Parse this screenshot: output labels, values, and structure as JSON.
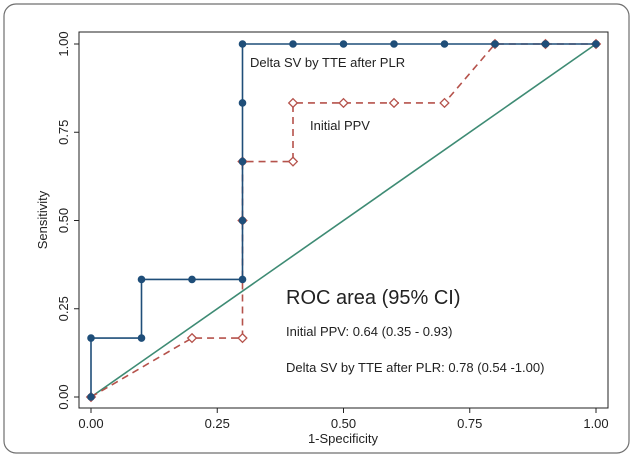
{
  "chart_data": {
    "type": "line",
    "title": "",
    "xlabel": "1-Specificity",
    "ylabel": "Sensitivity",
    "xlim": [
      0,
      1
    ],
    "ylim": [
      0,
      1
    ],
    "x_ticks": [
      "0.00",
      "0.25",
      "0.50",
      "0.75",
      "1.00"
    ],
    "y_ticks": [
      "0.00",
      "0.25",
      "0.50",
      "0.75",
      "1.00"
    ],
    "grid": false,
    "series": [
      {
        "name": "Delta SV by TTE after PLR",
        "color": "#1f4e79",
        "style": "solid",
        "marker": "filled-circle",
        "x": [
          0,
          0,
          0.1,
          0.1,
          0.2,
          0.3,
          0.3,
          0.3,
          0.3,
          0.3,
          0.4,
          0.5,
          0.6,
          0.7,
          0.8,
          0.9,
          1.0
        ],
        "y": [
          0,
          0.167,
          0.167,
          0.333,
          0.333,
          0.333,
          0.5,
          0.667,
          0.833,
          1.0,
          1.0,
          1.0,
          1.0,
          1.0,
          1.0,
          1.0,
          1.0
        ]
      },
      {
        "name": "Initial PPV",
        "color": "#b5524b",
        "style": "dashed",
        "marker": "hollow-diamond",
        "x": [
          0,
          0.2,
          0.3,
          0.3,
          0.3,
          0.4,
          0.4,
          0.5,
          0.6,
          0.7,
          0.8,
          0.9,
          1.0
        ],
        "y": [
          0,
          0.167,
          0.167,
          0.5,
          0.667,
          0.667,
          0.833,
          0.833,
          0.833,
          0.833,
          1.0,
          1.0,
          1.0
        ]
      },
      {
        "name": "",
        "color": "#3e8b74",
        "style": "solid",
        "marker": "none",
        "x": [
          0,
          1
        ],
        "y": [
          0,
          1
        ]
      }
    ],
    "annotations": {
      "label_delta": "Delta SV by TTE after PLR",
      "label_ppv": "Initial PPV",
      "roc_title": "ROC area (95% CI)",
      "roc_ppv": "Initial PPV: 0.64 (0.35 - 0.93)",
      "roc_delta": "Delta SV by TTE after PLR: 0.78 (0.54 -1.00)"
    }
  }
}
